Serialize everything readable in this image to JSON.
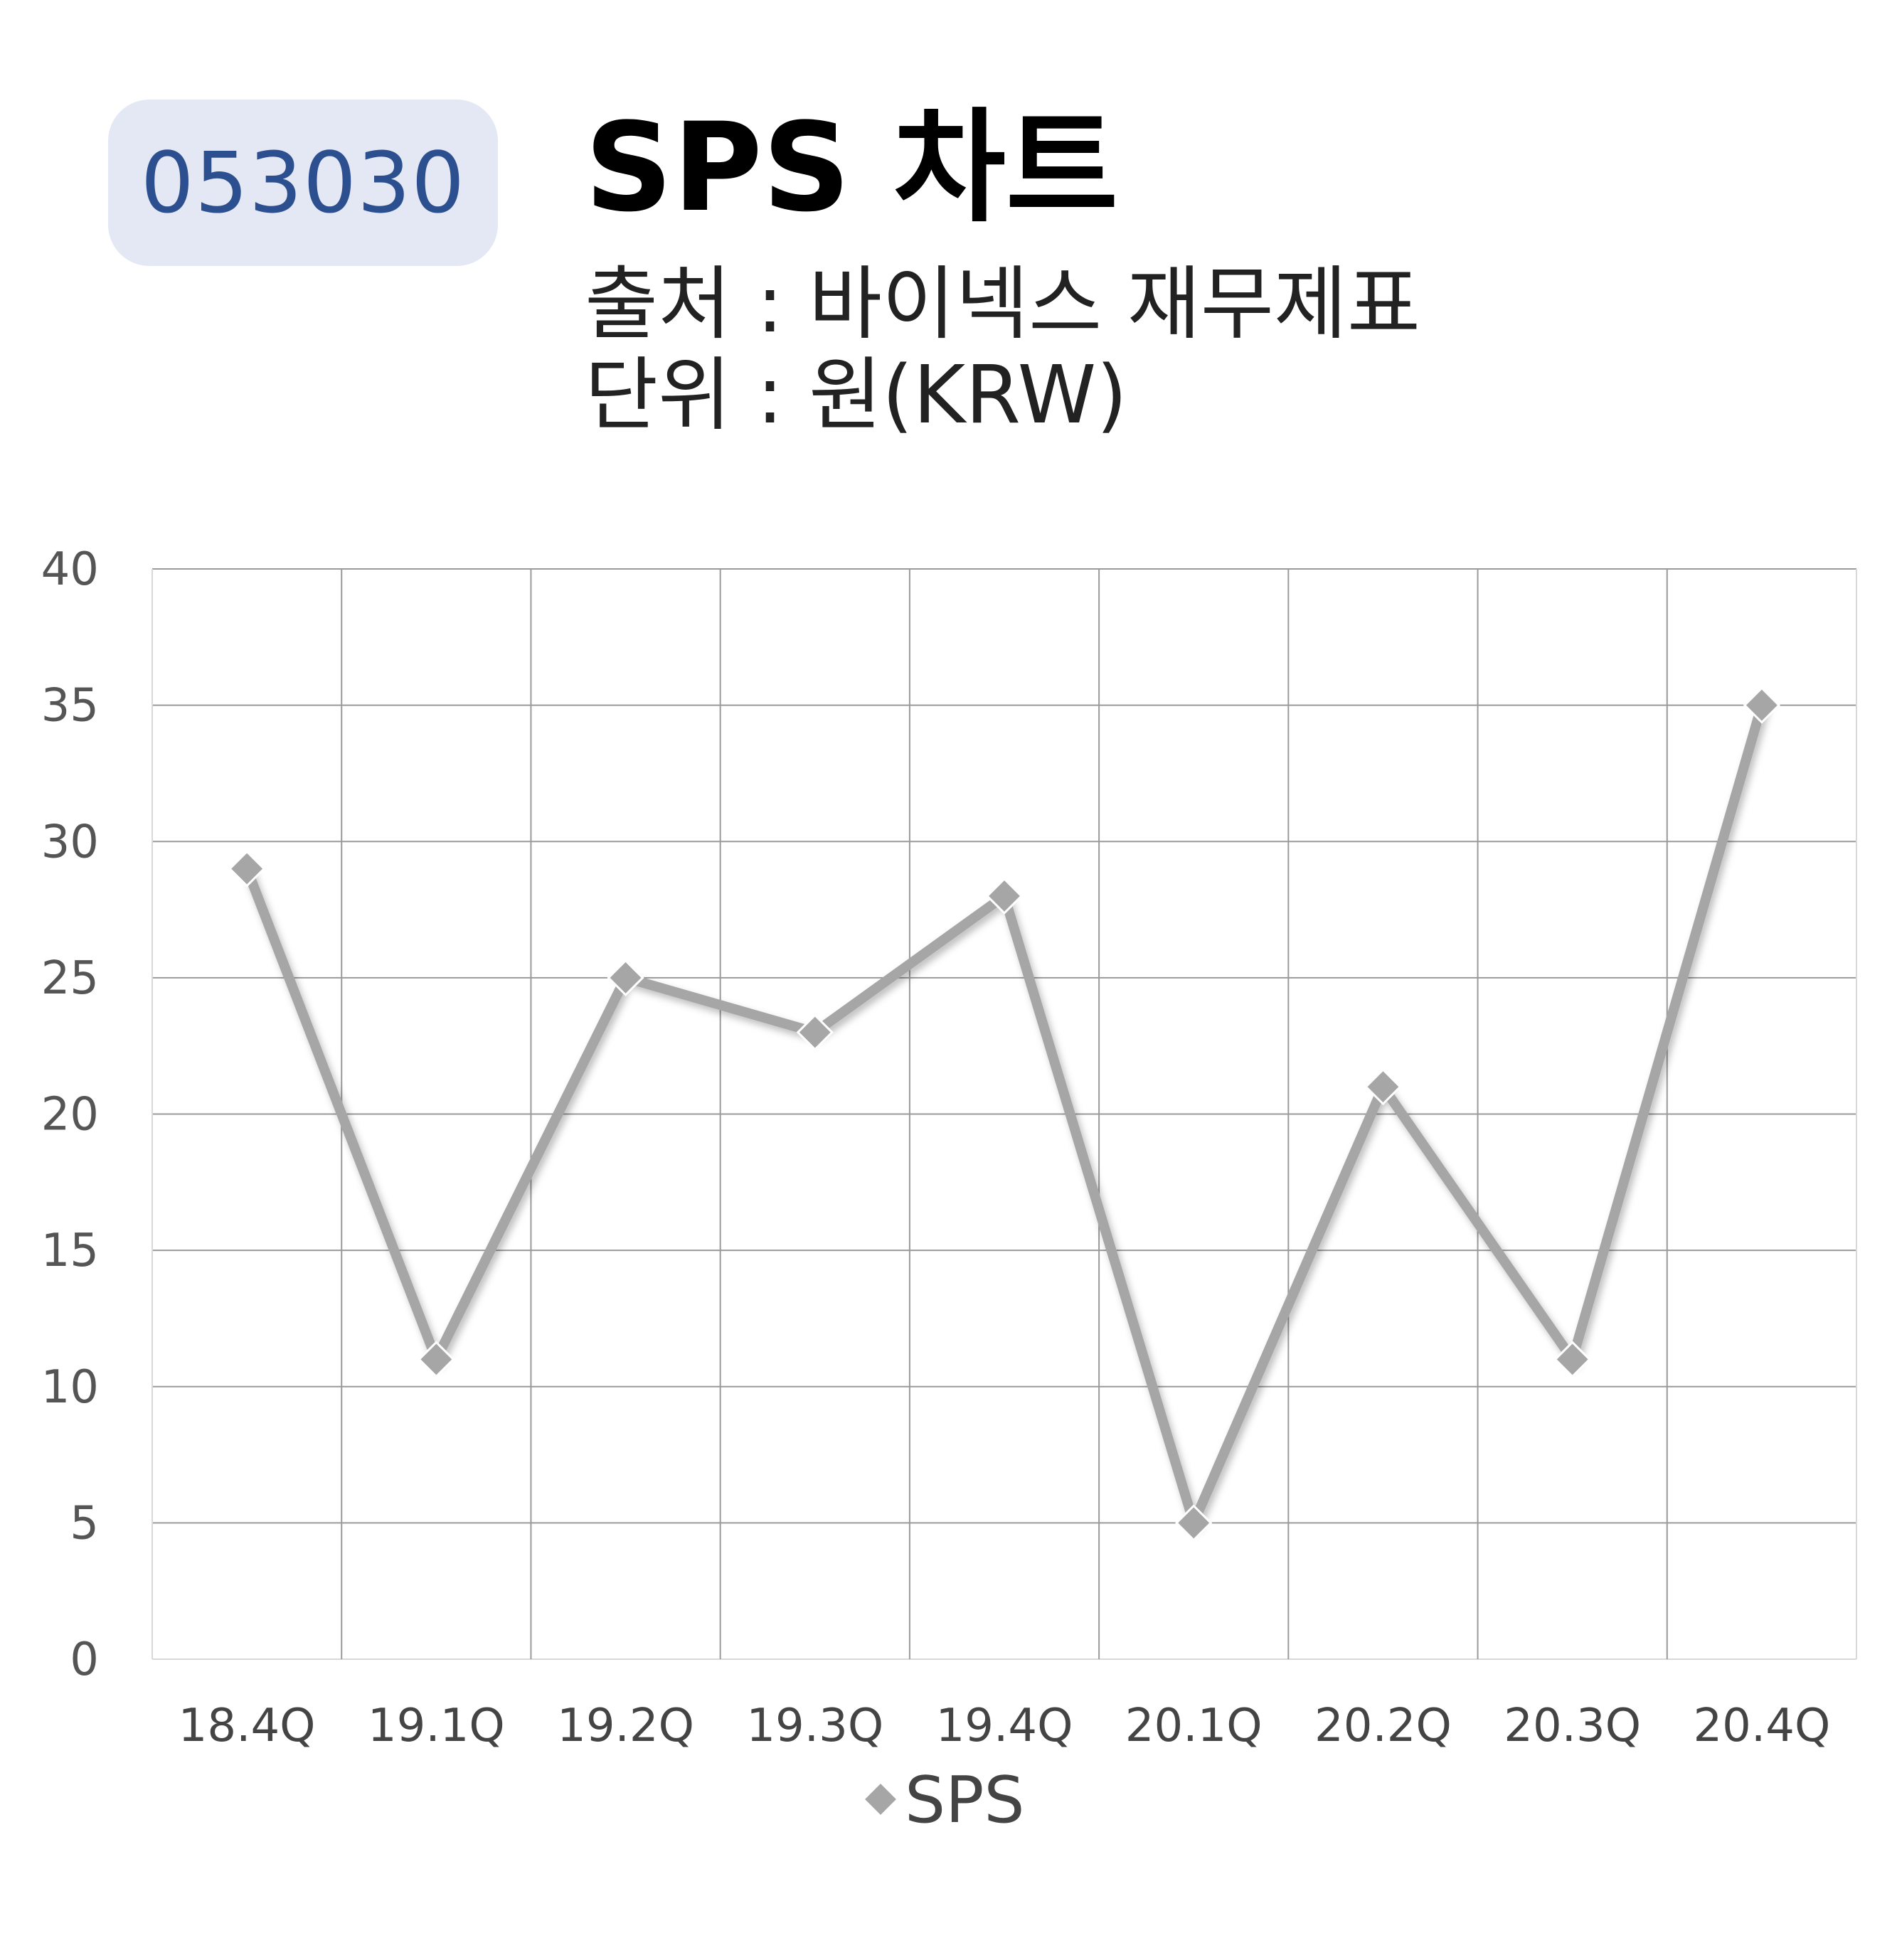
{
  "header": {
    "code": "053030",
    "title": "SPS 차트",
    "source": "출처 : 바이넥스 재무제표",
    "unit": "단위 : 원(KRW)"
  },
  "colors": {
    "badge_bg": "#e3e8f4",
    "badge_text": "#2c4f8f",
    "series": "#a6a6a6",
    "grid": "#9a9a9a"
  },
  "chart_data": {
    "type": "line",
    "title": "SPS 차트",
    "categories": [
      "18.4Q",
      "19.1Q",
      "19.2Q",
      "19.3Q",
      "19.4Q",
      "20.1Q",
      "20.2Q",
      "20.3Q",
      "20.4Q"
    ],
    "series": [
      {
        "name": "SPS",
        "values": [
          29,
          11,
          25,
          23,
          28,
          5,
          21,
          11,
          35
        ],
        "marker": "diamond"
      }
    ],
    "ylim": [
      0,
      40
    ],
    "yticks": [
      0,
      5,
      10,
      15,
      20,
      25,
      30,
      35,
      40
    ],
    "grid": true,
    "legend": "bottom-center"
  }
}
